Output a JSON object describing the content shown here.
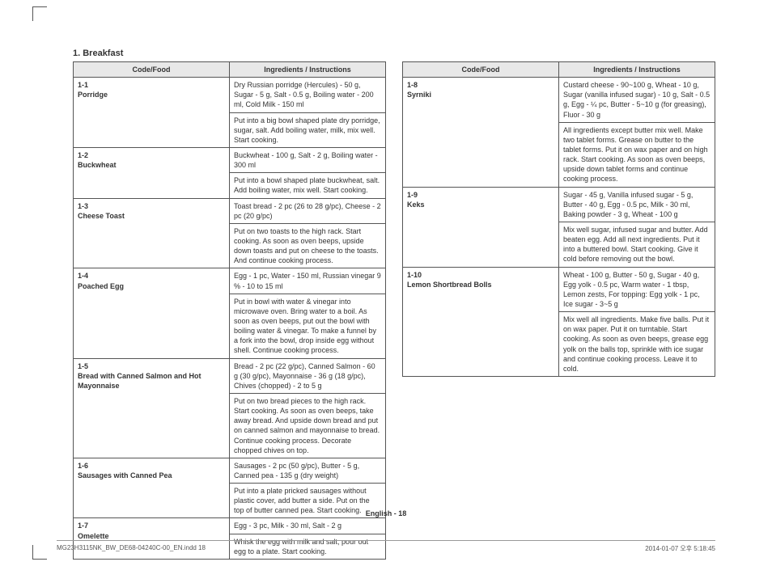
{
  "section_heading": "1. Breakfast",
  "headers": {
    "code": "Code/Food",
    "instr": "Ingredients / Instructions"
  },
  "left": [
    {
      "code": "1-1\nPorridge",
      "ing": "Dry Russian porridge (Hercules) - 50 g, Sugar - 5 g, Salt - 0.5 g, Boiling water - 200 ml, Cold Milk - 150 ml",
      "inst": "Put into a big bowl shaped plate dry porridge, sugar, salt. Add boiling water, milk, mix well. Start cooking."
    },
    {
      "code": "1-2\nBuckwheat",
      "ing": "Buckwheat - 100 g, Salt - 2 g, Boiling water - 300 ml",
      "inst": "Put into a bowl shaped plate buckwheat, salt. Add boiling water, mix well. Start cooking."
    },
    {
      "code": "1-3\nCheese Toast",
      "ing": "Toast bread - 2 pc (26 to 28 g/pc), Cheese - 2 pc (20 g/pc)",
      "inst": "Put on two toasts to the high rack. Start cooking. As soon as oven beeps, upside down toasts and put on cheese to the toasts. And continue cooking process."
    },
    {
      "code": "1-4\nPoached Egg",
      "ing": "Egg - 1 pc, Water - 150 ml, Russian vinegar 9 % - 10 to 15 ml",
      "inst": "Put in bowl with water & vinegar into microwave oven. Bring water to a boil. As soon as oven beeps, put out the bowl with boiling water & vinegar. To make a funnel by a fork into the bowl, drop inside egg without shell. Continue cooking process."
    },
    {
      "code": "1-5\nBread with Canned Salmon and Hot Mayonnaise",
      "ing": "Bread - 2 pc (22 g/pc), Canned Salmon - 60 g (30 g/pc), Mayonnaise - 36 g (18 g/pc), Chives (chopped) - 2 to 5 g",
      "inst": "Put on two bread pieces to the high rack. Start cooking. As soon as oven beeps, take away bread. And upside down bread and put on canned salmon and mayonnaise to bread. Continue cooking process. Decorate chopped chives on top."
    },
    {
      "code": "1-6\nSausages with Canned Pea",
      "ing": "Sausages - 2 pc (50 g/pc), Butter - 5 g, Canned pea - 135 g (dry weight)",
      "inst": "Put into a plate pricked sausages without plastic cover, add butter a side. Put on the top of butter canned pea. Start cooking."
    },
    {
      "code": "1-7\nOmelette",
      "ing": "Egg - 3 pc, Milk - 30 ml, Salt - 2 g",
      "inst": "Whisk the egg with milk and salt, pour out egg to a plate. Start cooking."
    }
  ],
  "right": [
    {
      "code": "1-8\nSyrniki",
      "ing": "Custard cheese - 90~100 g, Wheat - 10 g, Sugar (vanilla infused sugar) - 10 g, Salt - 0.5 g, Egg - ¼ pc, Butter - 5~10 g (for greasing), Fluor - 30 g",
      "inst": "All ingredients except butter mix well. Make two tablet forms. Grease on butter to the tablet forms. Put it on wax paper and on high rack. Start cooking. As soon as oven beeps, upside down tablet forms and continue cooking process."
    },
    {
      "code": "1-9\nKeks",
      "ing": "Sugar - 45 g, Vanilla infused sugar - 5 g, Butter - 40 g, Egg - 0.5 pc, Milk - 30 ml, Baking powder - 3 g, Wheat - 100 g",
      "inst": "Mix well sugar, infused sugar and butter. Add beaten egg. Add all next ingredients. Put it into a buttered bowl. Start cooking. Give it cold before removing out the bowl."
    },
    {
      "code": "1-10\nLemon Shortbread Bolls",
      "ing": "Wheat - 100 g, Butter - 50 g, Sugar - 40 g, Egg yolk - 0.5 pc, Warm water - 1 tbsp, Lemon zests, For topping: Egg yolk - 1 pc, Ice sugar - 3~5 g",
      "inst": "Mix well all ingredients. Make five balls. Put it on wax paper. Put it on turntable. Start cooking. As soon as oven beeps, grease egg yolk on the balls top, sprinkle with ice sugar and continue cooking process. Leave it to cold."
    }
  ],
  "page_footer": "English - 18",
  "imprint_left": "MG23H3115NK_BW_DE68-04240C-00_EN.indd   18",
  "imprint_right": "2014-01-07   오후 5:18:45"
}
